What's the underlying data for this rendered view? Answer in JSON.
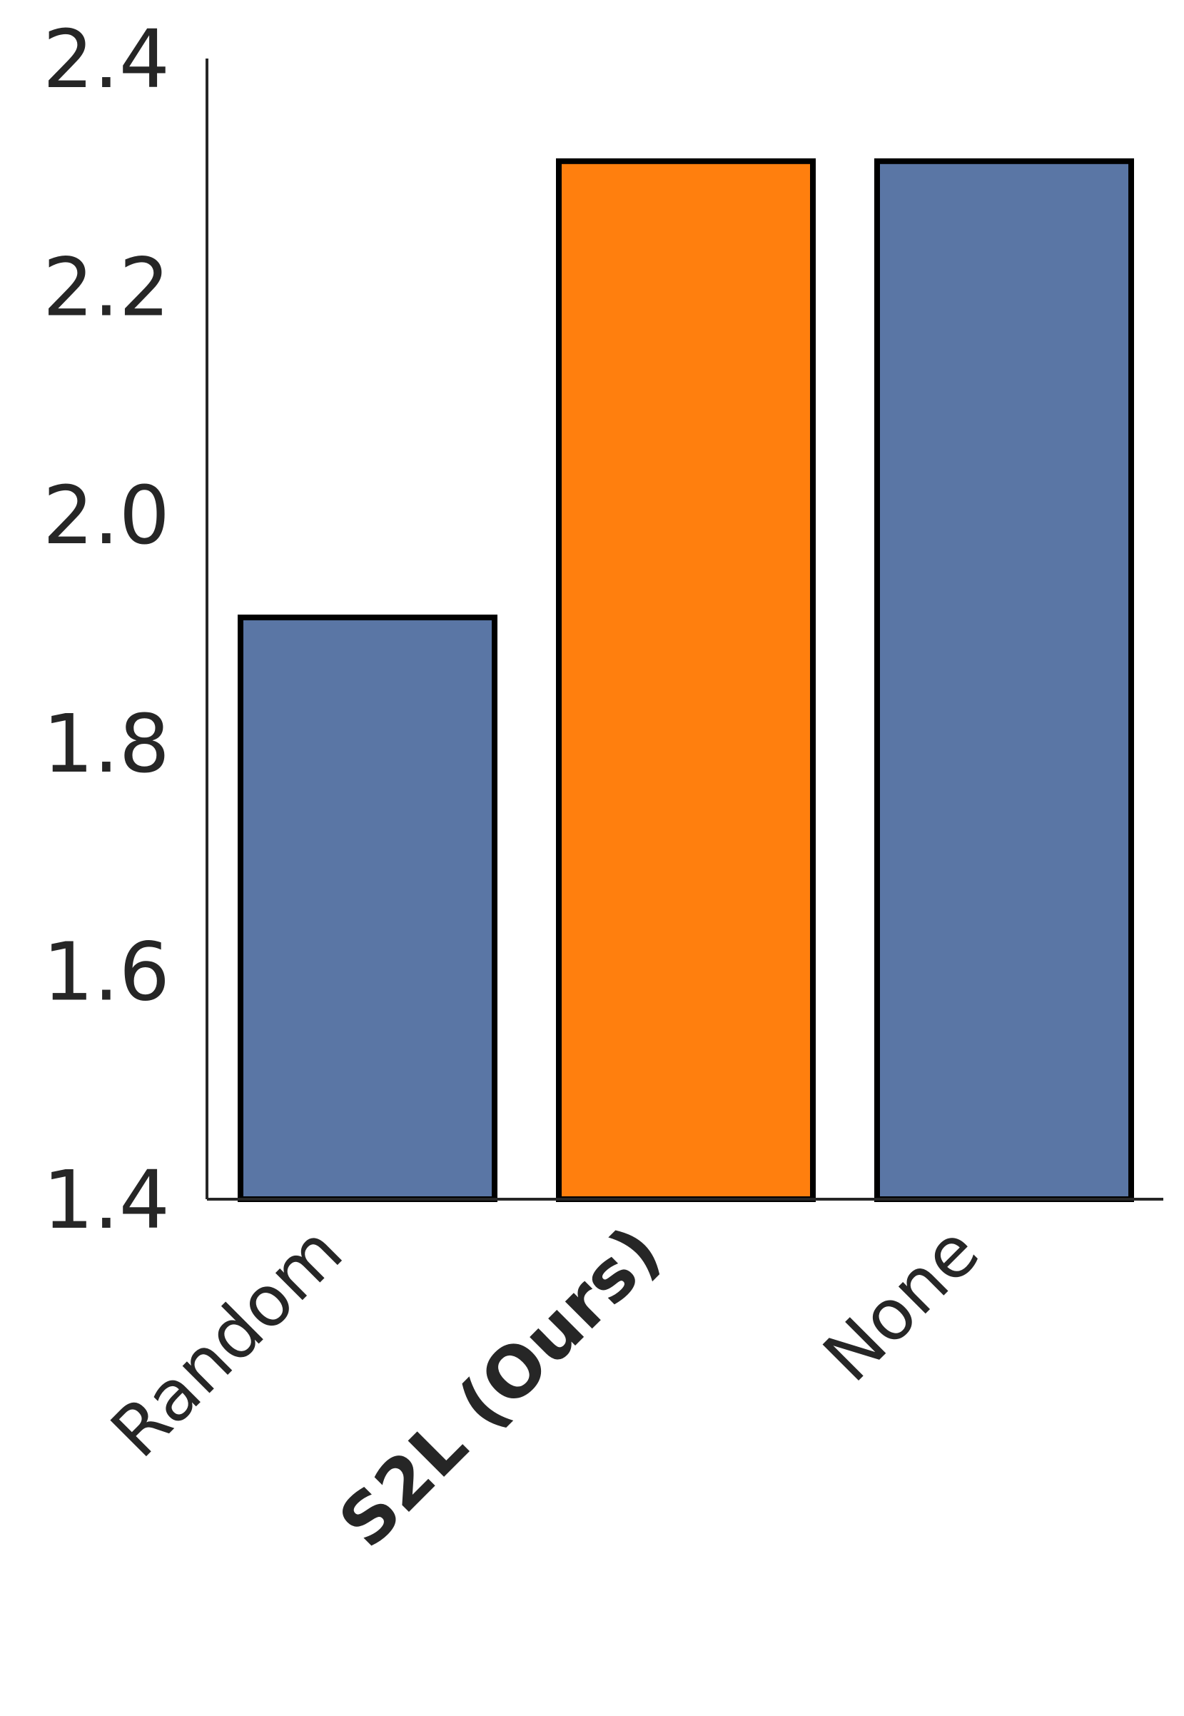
{
  "colors": {
    "default_bar": "#5a76a5",
    "highlight_bar": "#ff7f0e",
    "bar_edge": "#000000",
    "text": "#262626"
  },
  "chart_data": {
    "type": "bar",
    "categories": [
      "Random",
      "S2L (Ours)",
      "None"
    ],
    "values": [
      1.91,
      2.31,
      2.31
    ],
    "bold_categories": [
      "S2L (Ours)"
    ],
    "highlight_category": "S2L (Ours)",
    "ylim": [
      1.4,
      2.4
    ],
    "yticks": [
      "1.4",
      "1.6",
      "1.8",
      "2.0",
      "2.2",
      "2.4"
    ],
    "xlabel": "",
    "ylabel": "",
    "title": "",
    "grid": false,
    "legend": "none"
  }
}
